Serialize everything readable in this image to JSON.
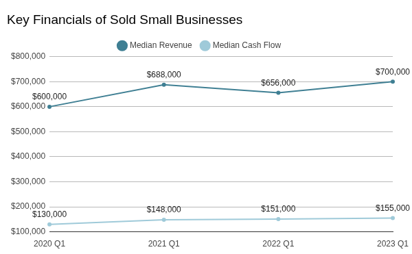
{
  "chart_data": {
    "type": "line",
    "title": "Key Financials of Sold Small Businesses",
    "categories": [
      "2020 Q1",
      "2021 Q1",
      "2022 Q1",
      "2023 Q1"
    ],
    "series": [
      {
        "name": "Median Revenue",
        "color": "#3f7f93",
        "marker": "circle",
        "values": [
          600000,
          688000,
          656000,
          700000
        ],
        "value_labels": [
          "$600,000",
          "$688,000",
          "$656,000",
          "$700,000"
        ]
      },
      {
        "name": "Median Cash Flow",
        "color": "#9fcad9",
        "marker": "circle",
        "values": [
          130000,
          148000,
          151000,
          155000
        ],
        "value_labels": [
          "$130,000",
          "$148,000",
          "$151,000",
          "$155,000"
        ]
      }
    ],
    "ylim": [
      100000,
      800000
    ],
    "yticks": [
      {
        "value": 100000,
        "label": "$100,000"
      },
      {
        "value": 200000,
        "label": "$200,000"
      },
      {
        "value": 300000,
        "label": "$300,000"
      },
      {
        "value": 400000,
        "label": "$400,000"
      },
      {
        "value": 500000,
        "label": "$500,000"
      },
      {
        "value": 600000,
        "label": "$600,000"
      },
      {
        "value": 700000,
        "label": "$700,000"
      },
      {
        "value": 800000,
        "label": "$800,000"
      }
    ],
    "grid": true,
    "legend": "top",
    "data_labels": true
  }
}
